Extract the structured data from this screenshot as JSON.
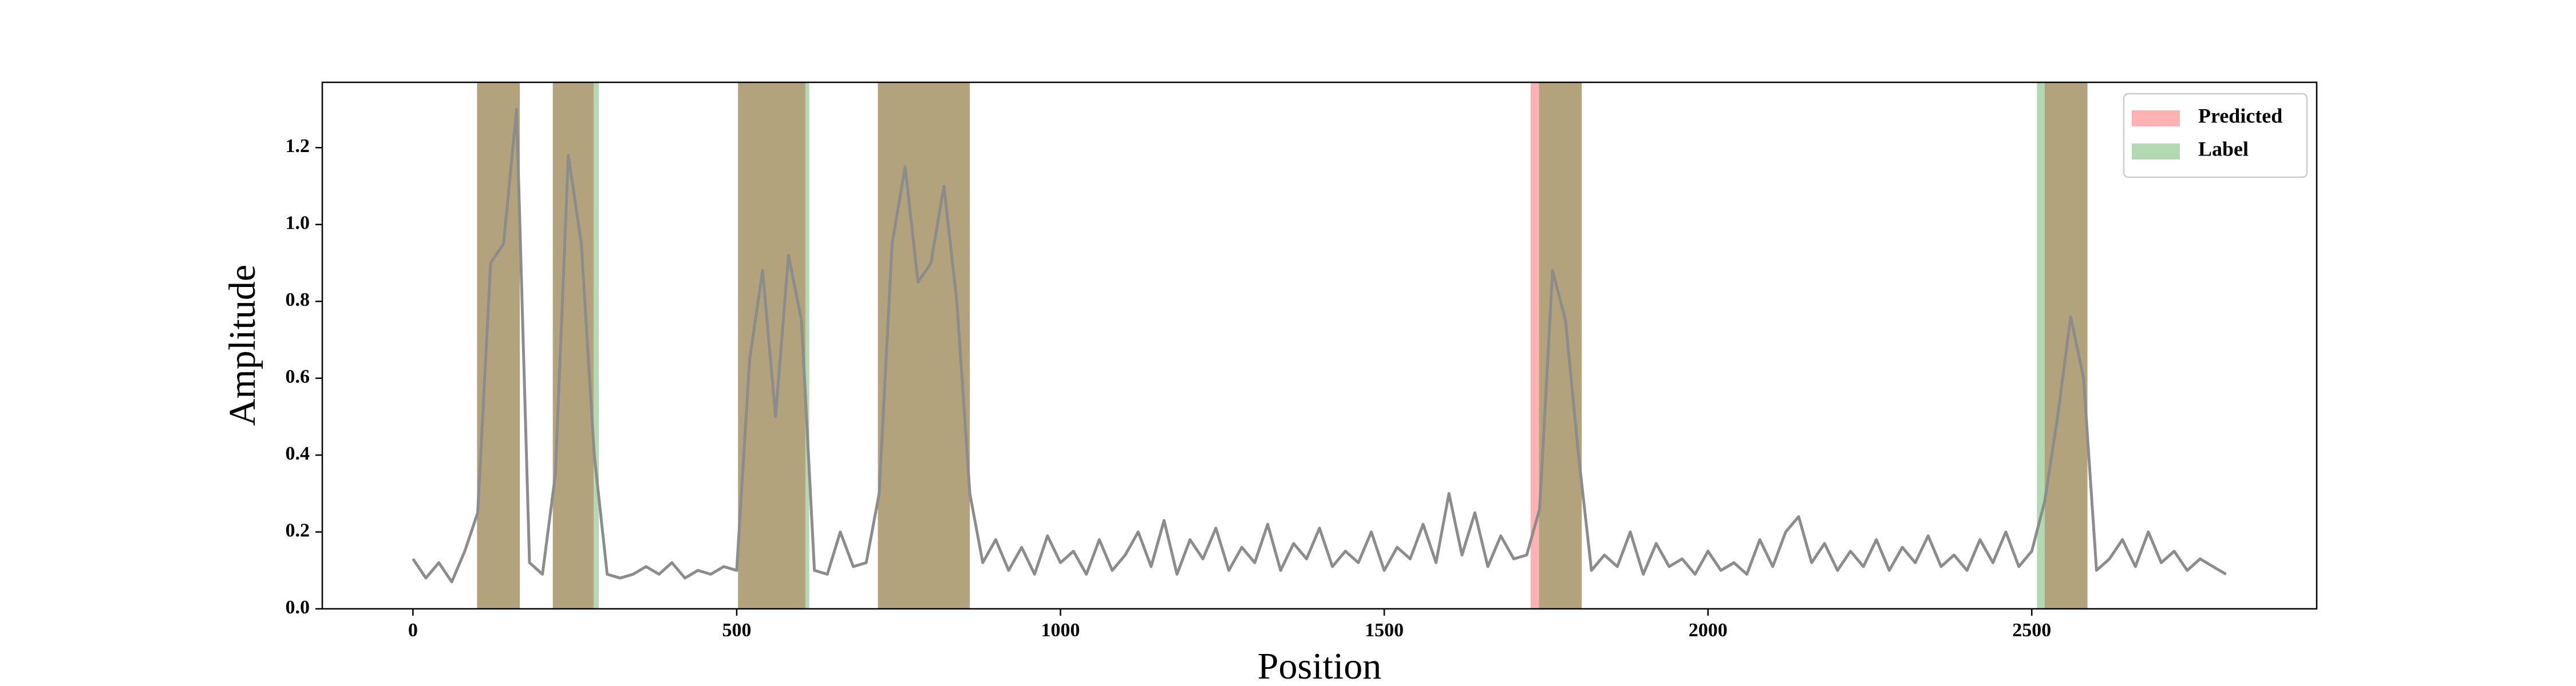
{
  "chart_data": {
    "type": "line",
    "xlabel": "Position",
    "ylabel": "Amplitude",
    "xlim": [
      -140,
      2940
    ],
    "ylim": [
      0,
      1.37
    ],
    "xticks": [
      0,
      500,
      1000,
      1500,
      2000,
      2500
    ],
    "yticks": [
      {
        "value": 0,
        "label": "0.0"
      },
      0.2,
      0.4,
      0.6,
      0.8,
      {
        "value": 1,
        "label": "1.0"
      },
      1.2
    ],
    "legend": "upper right",
    "span_alpha": 0.3,
    "spans": [
      {
        "name": "Predicted",
        "color": "red",
        "ranges": [
          [
            99,
            165
          ],
          [
            216,
            279
          ],
          [
            502,
            606
          ],
          [
            718,
            860
          ],
          [
            1726,
            1805
          ],
          [
            2520,
            2586
          ]
        ]
      },
      {
        "name": "Label",
        "color": "green",
        "ranges": [
          [
            99,
            165
          ],
          [
            216,
            287
          ],
          [
            502,
            612
          ],
          [
            718,
            860
          ],
          [
            1739,
            1805
          ],
          [
            2508,
            2586
          ]
        ]
      }
    ],
    "x": [
      0,
      20,
      40,
      60,
      80,
      100,
      120,
      140,
      160,
      180,
      200,
      220,
      240,
      260,
      280,
      300,
      320,
      340,
      360,
      380,
      400,
      420,
      440,
      460,
      480,
      500,
      520,
      540,
      560,
      580,
      600,
      620,
      640,
      660,
      680,
      700,
      720,
      740,
      760,
      780,
      800,
      820,
      840,
      860,
      880,
      900,
      920,
      940,
      960,
      980,
      1000,
      1020,
      1040,
      1060,
      1080,
      1100,
      1120,
      1140,
      1160,
      1180,
      1200,
      1220,
      1240,
      1260,
      1280,
      1300,
      1320,
      1340,
      1360,
      1380,
      1400,
      1420,
      1440,
      1460,
      1480,
      1500,
      1520,
      1540,
      1560,
      1580,
      1600,
      1620,
      1640,
      1660,
      1680,
      1700,
      1720,
      1740,
      1760,
      1780,
      1800,
      1820,
      1840,
      1860,
      1880,
      1900,
      1920,
      1940,
      1960,
      1980,
      2000,
      2020,
      2040,
      2060,
      2080,
      2100,
      2120,
      2140,
      2160,
      2180,
      2200,
      2220,
      2240,
      2260,
      2280,
      2300,
      2320,
      2340,
      2360,
      2380,
      2400,
      2420,
      2440,
      2460,
      2480,
      2500,
      2520,
      2540,
      2560,
      2580,
      2600,
      2620,
      2640,
      2660,
      2680,
      2700,
      2720,
      2740,
      2760,
      2780,
      2800
    ],
    "series": [
      {
        "color": "#8c8c8c",
        "values": [
          0.13,
          0.08,
          0.12,
          0.07,
          0.15,
          0.25,
          0.9,
          0.95,
          1.3,
          0.12,
          0.09,
          0.35,
          1.18,
          0.95,
          0.4,
          0.09,
          0.08,
          0.09,
          0.11,
          0.09,
          0.12,
          0.08,
          0.1,
          0.09,
          0.11,
          0.1,
          0.65,
          0.88,
          0.5,
          0.92,
          0.75,
          0.1,
          0.09,
          0.2,
          0.11,
          0.12,
          0.3,
          0.95,
          1.15,
          0.85,
          0.9,
          1.1,
          0.8,
          0.3,
          0.12,
          0.18,
          0.1,
          0.16,
          0.09,
          0.19,
          0.12,
          0.15,
          0.09,
          0.18,
          0.1,
          0.14,
          0.2,
          0.11,
          0.23,
          0.09,
          0.18,
          0.13,
          0.21,
          0.1,
          0.16,
          0.12,
          0.22,
          0.1,
          0.17,
          0.13,
          0.21,
          0.11,
          0.15,
          0.12,
          0.2,
          0.1,
          0.16,
          0.13,
          0.22,
          0.12,
          0.3,
          0.14,
          0.25,
          0.11,
          0.19,
          0.13,
          0.14,
          0.26,
          0.88,
          0.75,
          0.4,
          0.1,
          0.14,
          0.11,
          0.2,
          0.09,
          0.17,
          0.11,
          0.13,
          0.09,
          0.15,
          0.1,
          0.12,
          0.09,
          0.18,
          0.11,
          0.2,
          0.24,
          0.12,
          0.17,
          0.1,
          0.15,
          0.11,
          0.18,
          0.1,
          0.16,
          0.12,
          0.19,
          0.11,
          0.14,
          0.1,
          0.18,
          0.12,
          0.2,
          0.11,
          0.15,
          0.28,
          0.5,
          0.76,
          0.6,
          0.1,
          0.13,
          0.18,
          0.11,
          0.2,
          0.12,
          0.15,
          0.1,
          0.13,
          0.11,
          0.09
        ]
      }
    ]
  }
}
